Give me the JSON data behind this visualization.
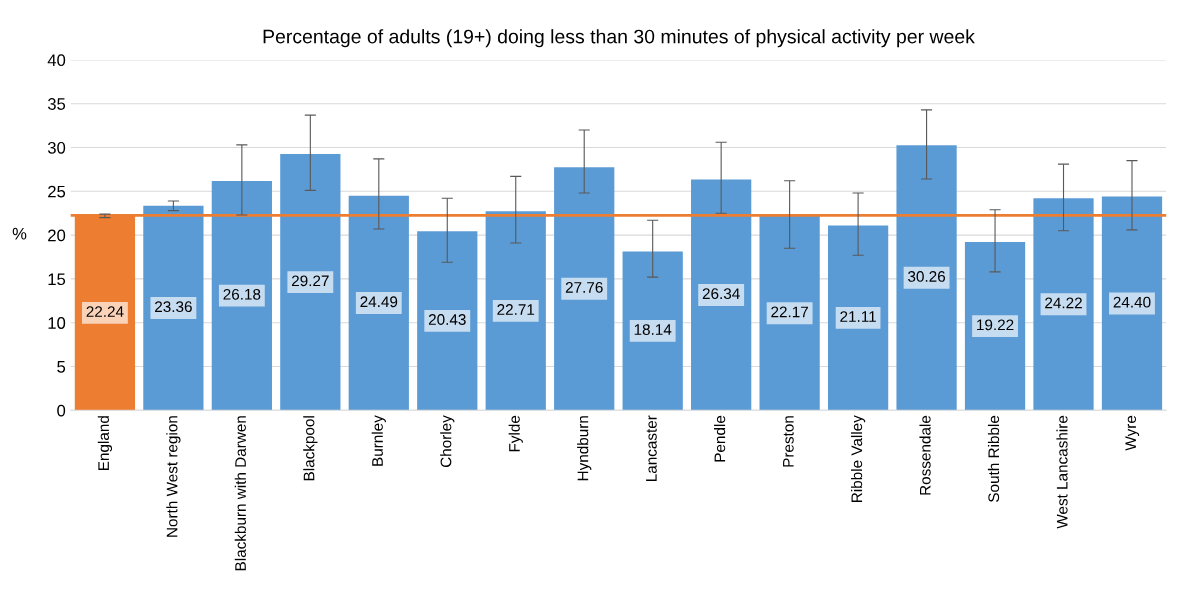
{
  "chart_data": {
    "type": "bar",
    "title": "Percentage of adults (19+) doing less than 30 minutes of physical activity per week",
    "ylabel": "%",
    "categories": [
      "England",
      "North West region",
      "Blackburn with Darwen",
      "Blackpool",
      "Burnley",
      "Chorley",
      "Fylde",
      "Hyndburn",
      "Lancaster",
      "Pendle",
      "Preston",
      "Ribble Valley",
      "Rossendale",
      "South Ribble",
      "West Lancashire",
      "Wyre"
    ],
    "values": [
      22.24,
      23.36,
      26.18,
      29.27,
      24.49,
      20.43,
      22.71,
      27.76,
      18.14,
      26.34,
      22.17,
      21.11,
      30.26,
      19.22,
      24.22,
      24.4
    ],
    "value_labels": [
      "22.24",
      "23.36",
      "26.18",
      "29.27",
      "24.49",
      "20.43",
      "22.71",
      "27.76",
      "18.14",
      "26.34",
      "22.17",
      "21.11",
      "30.26",
      "19.22",
      "24.22",
      "24.40"
    ],
    "colors": [
      "#ed7d31",
      "#5b9bd5",
      "#5b9bd5",
      "#5b9bd5",
      "#5b9bd5",
      "#5b9bd5",
      "#5b9bd5",
      "#5b9bd5",
      "#5b9bd5",
      "#5b9bd5",
      "#5b9bd5",
      "#5b9bd5",
      "#5b9bd5",
      "#5b9bd5",
      "#5b9bd5",
      "#5b9bd5"
    ],
    "errors": [
      [
        22.0,
        22.4
      ],
      [
        22.8,
        23.9
      ],
      [
        22.3,
        30.3
      ],
      [
        25.1,
        33.7
      ],
      [
        20.7,
        28.7
      ],
      [
        16.9,
        24.2
      ],
      [
        19.1,
        26.7
      ],
      [
        24.8,
        32.0
      ],
      [
        15.2,
        21.7
      ],
      [
        22.5,
        30.6
      ],
      [
        18.5,
        26.2
      ],
      [
        17.7,
        24.8
      ],
      [
        26.4,
        34.3
      ],
      [
        15.8,
        22.9
      ],
      [
        20.5,
        28.1
      ],
      [
        20.6,
        28.5
      ]
    ],
    "ref_lines": [
      {
        "axis": "y",
        "value": 22.24,
        "color": "#ed7d31"
      }
    ],
    "ylim": [
      0,
      40
    ],
    "yticks": [
      0,
      5,
      10,
      15,
      20,
      25,
      30,
      35,
      40
    ],
    "grid": "y"
  }
}
